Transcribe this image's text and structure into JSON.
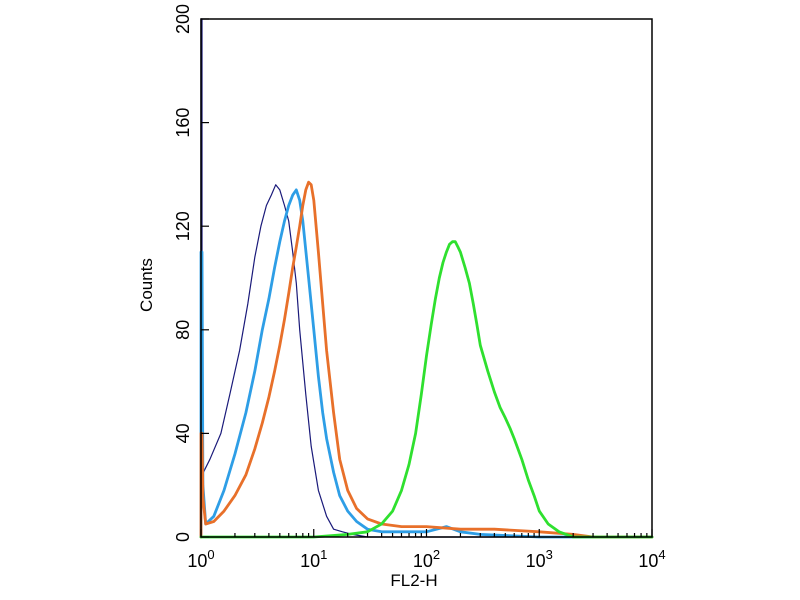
{
  "chart_data": {
    "type": "line",
    "title": "",
    "xlabel": "FL2-H",
    "ylabel": "Counts",
    "xscale": "log",
    "xlim": [
      1,
      10000
    ],
    "ylim": [
      0,
      200
    ],
    "grid": false,
    "legend": "none",
    "y_ticks": [
      {
        "value": 0,
        "label": "0"
      },
      {
        "value": 40,
        "label": "40"
      },
      {
        "value": 80,
        "label": "80"
      },
      {
        "value": 120,
        "label": "120"
      },
      {
        "value": 160,
        "label": "160"
      },
      {
        "value": 200,
        "label": "200"
      }
    ],
    "x_ticks": [
      {
        "value": 1,
        "base": "10",
        "exp": "0"
      },
      {
        "value": 10,
        "base": "10",
        "exp": "1"
      },
      {
        "value": 100,
        "base": "10",
        "exp": "2"
      },
      {
        "value": 1000,
        "base": "10",
        "exp": "3"
      },
      {
        "value": 10000,
        "base": "10",
        "exp": "4"
      }
    ],
    "series": [
      {
        "color": "#1a1a7a",
        "stroke_width": 1.2,
        "x": [
          1,
          1,
          1.02,
          1.02,
          1.05,
          1.2,
          1.5,
          1.8,
          2.2,
          2.6,
          3.0,
          3.4,
          3.8,
          4.2,
          4.6,
          5.0,
          5.5,
          6.0,
          6.5,
          7.0,
          7.5,
          8.5,
          9.5,
          11,
          13,
          15,
          18,
          22,
          30,
          50,
          100,
          1000,
          10000
        ],
        "y": [
          0,
          200,
          200,
          30,
          25,
          30,
          40,
          55,
          72,
          90,
          108,
          120,
          128,
          132,
          136,
          134,
          128,
          122,
          110,
          98,
          80,
          55,
          35,
          18,
          8,
          3,
          2,
          1,
          0,
          0,
          0,
          0,
          0
        ]
      },
      {
        "color": "#2e9ee6",
        "stroke_width": 2.8,
        "x": [
          1,
          1,
          1.02,
          1.04,
          1.1,
          1.3,
          1.6,
          2.0,
          2.5,
          3.0,
          3.5,
          4.0,
          4.5,
          5.0,
          5.5,
          6.0,
          6.5,
          7.0,
          7.5,
          8.0,
          9.0,
          10,
          11,
          12,
          13,
          15,
          17,
          20,
          24,
          30,
          40,
          60,
          100,
          150,
          200,
          300,
          1000,
          10000
        ],
        "y": [
          0,
          110,
          110,
          20,
          5,
          8,
          18,
          32,
          48,
          64,
          80,
          92,
          104,
          114,
          122,
          128,
          132,
          134,
          130,
          122,
          100,
          80,
          62,
          48,
          38,
          25,
          16,
          10,
          6,
          3,
          2,
          2,
          2,
          4,
          2,
          1,
          0,
          0
        ]
      },
      {
        "color": "#e8702a",
        "stroke_width": 2.8,
        "x": [
          1,
          1,
          1.02,
          1.04,
          1.1,
          1.3,
          1.6,
          2.0,
          2.5,
          3.0,
          3.5,
          4.0,
          4.5,
          5.0,
          5.5,
          6.0,
          6.5,
          7.0,
          7.5,
          8.0,
          8.5,
          9.0,
          9.5,
          10,
          11,
          12,
          13,
          15,
          17,
          20,
          24,
          30,
          40,
          60,
          100,
          200,
          400,
          1000,
          2000,
          3000,
          10000
        ],
        "y": [
          0,
          40,
          40,
          15,
          5,
          6,
          10,
          16,
          24,
          34,
          44,
          54,
          64,
          74,
          84,
          94,
          104,
          112,
          120,
          128,
          134,
          137,
          136,
          130,
          110,
          90,
          72,
          48,
          30,
          18,
          11,
          7,
          5,
          4,
          4,
          3,
          3,
          2,
          1,
          0,
          0
        ]
      },
      {
        "color": "#2fe02f",
        "stroke_width": 2.8,
        "x": [
          1,
          5,
          10,
          20,
          30,
          40,
          50,
          60,
          70,
          80,
          90,
          100,
          110,
          120,
          130,
          140,
          150,
          160,
          170,
          180,
          190,
          200,
          220,
          240,
          260,
          280,
          300,
          350,
          400,
          450,
          500,
          550,
          600,
          700,
          800,
          900,
          1000,
          1200,
          1500,
          2000,
          2500,
          3000,
          10000
        ],
        "y": [
          0,
          0,
          0,
          1,
          2,
          5,
          10,
          18,
          28,
          40,
          55,
          70,
          82,
          92,
          100,
          106,
          110,
          113,
          114,
          114,
          112,
          110,
          104,
          98,
          90,
          82,
          74,
          64,
          56,
          50,
          46,
          42,
          38,
          30,
          22,
          16,
          10,
          5,
          2,
          0,
          0,
          0,
          0
        ]
      }
    ]
  }
}
